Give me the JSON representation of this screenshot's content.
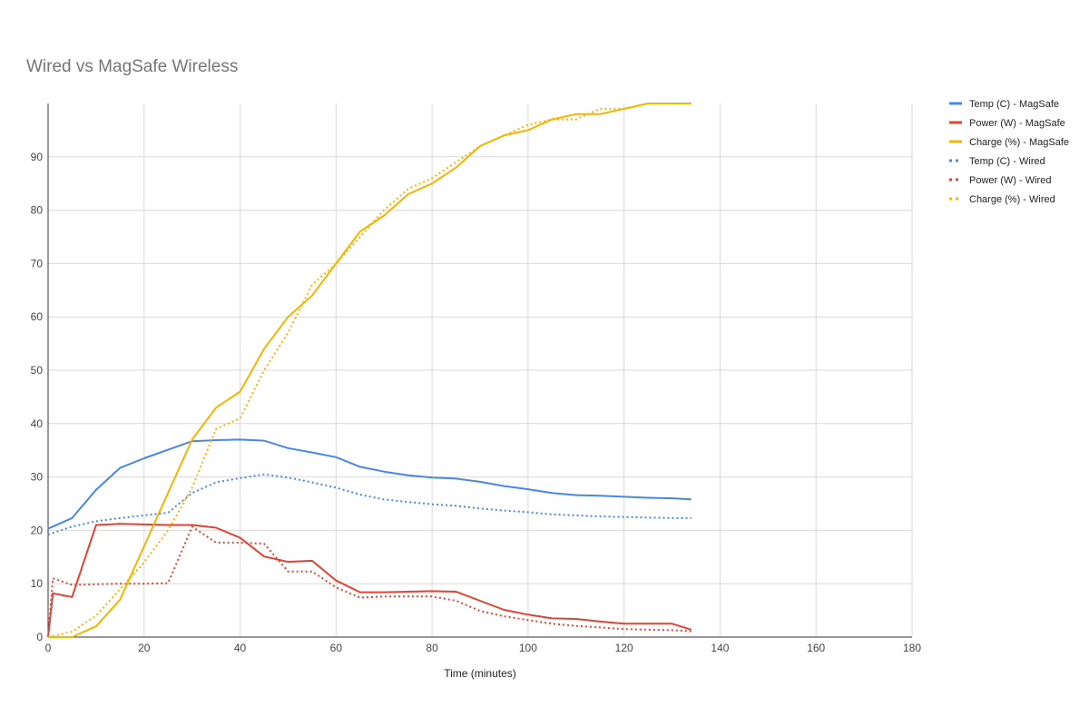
{
  "chart_data": {
    "type": "line",
    "title": "Wired vs MagSafe Wireless",
    "xlabel": "Time (minutes)",
    "ylabel": "",
    "xlim": [
      0,
      180
    ],
    "ylim": [
      0,
      100
    ],
    "x_ticks": [
      "0",
      "20",
      "40",
      "60",
      "80",
      "100",
      "120",
      "140",
      "160",
      "180"
    ],
    "y_ticks": [
      "0",
      "10",
      "20",
      "30",
      "40",
      "50",
      "60",
      "70",
      "80",
      "90"
    ],
    "grid": true,
    "legend_position": "right",
    "series": [
      {
        "name": "Temp (C) - MagSafe",
        "color": "#4a86e8",
        "style": "solid",
        "x": [
          0,
          5,
          10,
          15,
          20,
          25,
          30,
          35,
          40,
          45,
          50,
          55,
          60,
          65,
          70,
          75,
          80,
          85,
          90,
          95,
          100,
          105,
          110,
          115,
          120,
          125,
          130,
          134
        ],
        "y": [
          20.3,
          22.3,
          27.6,
          31.7,
          33.5,
          35.1,
          36.7,
          36.9,
          37.0,
          36.8,
          35.4,
          34.6,
          33.7,
          31.9,
          31.0,
          30.3,
          29.9,
          29.7,
          29.1,
          28.3,
          27.7,
          27.0,
          26.6,
          26.5,
          26.3,
          26.1,
          26.0,
          25.8
        ]
      },
      {
        "name": "Power (W) - MagSafe",
        "color": "#e34234",
        "style": "solid",
        "x": [
          0,
          1,
          5,
          10,
          15,
          20,
          25,
          30,
          35,
          40,
          45,
          50,
          55,
          60,
          65,
          70,
          75,
          80,
          85,
          90,
          95,
          100,
          105,
          110,
          115,
          120,
          125,
          130,
          134
        ],
        "y": [
          0.0,
          8.2,
          7.5,
          21.0,
          21.2,
          21.1,
          21.0,
          21.0,
          20.5,
          18.6,
          15.1,
          14.1,
          14.3,
          10.6,
          8.4,
          8.4,
          8.5,
          8.6,
          8.5,
          6.8,
          5.1,
          4.2,
          3.5,
          3.4,
          2.9,
          2.5,
          2.5,
          2.5,
          1.4
        ]
      },
      {
        "name": "Charge (%) - MagSafe",
        "color": "#f4b400",
        "style": "solid",
        "x": [
          0,
          5,
          10,
          15,
          20,
          25,
          30,
          35,
          40,
          45,
          50,
          55,
          60,
          65,
          70,
          75,
          80,
          85,
          90,
          95,
          100,
          105,
          110,
          115,
          120,
          125,
          130,
          134
        ],
        "y": [
          0,
          0,
          2,
          7,
          17,
          27,
          37,
          43,
          46,
          54,
          60,
          64,
          70,
          76,
          79,
          83,
          85,
          88,
          92,
          94,
          95,
          97,
          98,
          98,
          99,
          100,
          100,
          100
        ]
      },
      {
        "name": "Temp (C) - Wired",
        "color": "#4a86e8",
        "style": "dotted",
        "x": [
          0,
          5,
          10,
          15,
          20,
          25,
          30,
          35,
          40,
          45,
          50,
          55,
          60,
          65,
          70,
          75,
          80,
          85,
          90,
          95,
          100,
          105,
          110,
          115,
          120,
          125,
          130,
          134
        ],
        "y": [
          19.2,
          20.7,
          21.7,
          22.3,
          22.8,
          23.3,
          27.0,
          29.0,
          29.8,
          30.5,
          29.9,
          29.0,
          28.0,
          26.7,
          25.8,
          25.3,
          24.9,
          24.6,
          24.1,
          23.7,
          23.4,
          23.0,
          22.8,
          22.6,
          22.5,
          22.4,
          22.3,
          22.3
        ]
      },
      {
        "name": "Power (W) - Wired",
        "color": "#e34234",
        "style": "dotted",
        "x": [
          0,
          1,
          5,
          10,
          15,
          20,
          25,
          30,
          35,
          40,
          45,
          50,
          55,
          60,
          65,
          70,
          75,
          80,
          85,
          90,
          95,
          100,
          105,
          110,
          115,
          120,
          125,
          130,
          134
        ],
        "y": [
          0.0,
          11.0,
          9.8,
          9.9,
          10.0,
          10.0,
          10.1,
          20.7,
          17.7,
          17.7,
          17.5,
          12.3,
          12.3,
          9.3,
          7.4,
          7.6,
          7.6,
          7.6,
          6.8,
          4.9,
          3.9,
          3.2,
          2.5,
          2.1,
          1.8,
          1.5,
          1.4,
          1.3,
          1.1
        ]
      },
      {
        "name": "Charge (%) - Wired",
        "color": "#f4b400",
        "style": "dotted",
        "x": [
          0,
          5,
          10,
          15,
          20,
          25,
          30,
          35,
          40,
          45,
          50,
          55,
          60,
          65,
          70,
          75,
          80,
          85,
          90,
          95,
          100,
          105,
          110,
          115,
          120,
          125,
          130,
          134
        ],
        "y": [
          0,
          1,
          4,
          9,
          14,
          20,
          28,
          39,
          41,
          50,
          57,
          66,
          70,
          75,
          80,
          84,
          86,
          89,
          92,
          94,
          96,
          97,
          97,
          99,
          99,
          100,
          100,
          100
        ]
      }
    ]
  }
}
